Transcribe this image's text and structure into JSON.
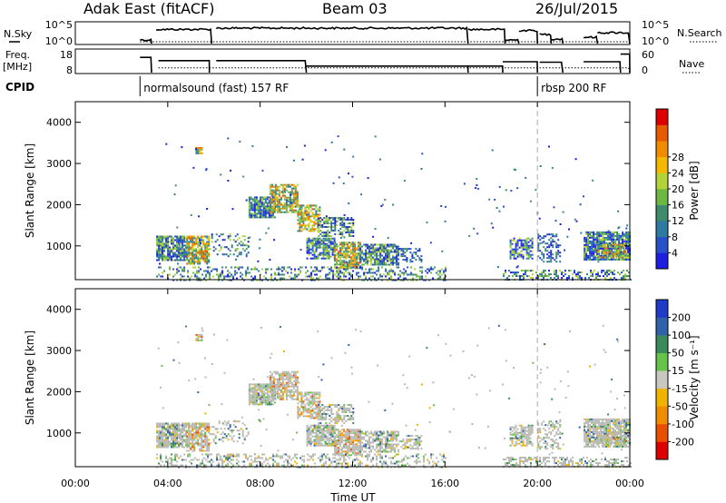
{
  "header": {
    "station": "Adak East (fitACF)",
    "beam": "Beam 03",
    "date": "26/Jul/2015"
  },
  "panels": {
    "nsky_label": "N.Sky",
    "nsearch_label": "N.Search",
    "freq_label": "Freq.",
    "freq_unit": "[MHz]",
    "nave_label": "Nave",
    "cpid_label": "CPID",
    "nsky_ticks": [
      "10^5",
      "10^0"
    ],
    "nsearch_ticks": [
      "10^5",
      "10^0"
    ],
    "freq_ticks": [
      "18",
      "8"
    ],
    "nave_ticks": [
      "60",
      "0"
    ]
  },
  "cpid_programs": [
    {
      "label": "normalsound (fast) 157 RF",
      "start_hour": 2.8
    },
    {
      "label": "rbsp 200 RF",
      "start_hour": 20.0
    }
  ],
  "x_ticks": [
    "00:00",
    "04:00",
    "08:00",
    "12:00",
    "16:00",
    "20:00",
    "00:00"
  ],
  "x_title": "Time UT",
  "y_title": "Slant Range [km]",
  "y_ticks": [
    "1000",
    "2000",
    "3000",
    "4000"
  ],
  "power_colorbar": {
    "title": "Power [dB]",
    "ticks": [
      "4",
      "8",
      "12",
      "16",
      "20",
      "24",
      "28"
    ],
    "colors": [
      "#1e1ee0",
      "#2850c8",
      "#2e7aa0",
      "#3e8c6c",
      "#6cb842",
      "#b4d23a",
      "#f5b800",
      "#f08c00",
      "#e85a00",
      "#dc0000"
    ]
  },
  "velocity_colorbar": {
    "title": "Velocity [m s⁻¹]",
    "ticks": [
      "200",
      "100",
      "50",
      "15",
      "-15",
      "-50",
      "-100",
      "-200"
    ],
    "colors": [
      "#1e3cc8",
      "#2f62a8",
      "#3a8a5a",
      "#66c24a",
      "#c8c8c0",
      "#f0b400",
      "#f08c00",
      "#e85000",
      "#dc0000"
    ]
  },
  "colors": {
    "ground_scatter": "#b9b9b4",
    "frame": "#000000"
  },
  "chart_data": {
    "type": "heatmap",
    "x_range_hours": [
      0,
      24
    ],
    "y_range_km": [
      180,
      4500
    ],
    "regions": [
      {
        "t0": 3.5,
        "t1": 4.8,
        "r0": 650,
        "r1": 1250,
        "kind": "mid",
        "density": 0.85
      },
      {
        "t0": 4.8,
        "t1": 5.8,
        "r0": 550,
        "r1": 1250,
        "kind": "hot",
        "density": 0.8
      },
      {
        "t0": 5.8,
        "t1": 7.5,
        "r0": 750,
        "r1": 1300,
        "kind": "mid",
        "density": 0.25
      },
      {
        "t0": 7.5,
        "t1": 8.6,
        "r0": 1700,
        "r1": 2200,
        "kind": "mid",
        "density": 0.85
      },
      {
        "t0": 8.4,
        "t1": 9.6,
        "r0": 1800,
        "r1": 2500,
        "kind": "hot",
        "density": 0.75
      },
      {
        "t0": 9.6,
        "t1": 10.6,
        "r0": 1350,
        "r1": 2000,
        "kind": "hot",
        "density": 0.7
      },
      {
        "t0": 10.5,
        "t1": 12.0,
        "r0": 1250,
        "r1": 1700,
        "kind": "mid",
        "density": 0.6
      },
      {
        "t0": 10.0,
        "t1": 11.2,
        "r0": 700,
        "r1": 1200,
        "kind": "mid",
        "density": 0.85
      },
      {
        "t0": 11.2,
        "t1": 12.3,
        "r0": 450,
        "r1": 1100,
        "kind": "hot",
        "density": 0.85
      },
      {
        "t0": 12.3,
        "t1": 14.0,
        "r0": 550,
        "r1": 1050,
        "kind": "mid",
        "density": 0.75
      },
      {
        "t0": 14.0,
        "t1": 15.0,
        "r0": 600,
        "r1": 950,
        "kind": "low",
        "density": 0.5
      },
      {
        "t0": 18.8,
        "t1": 19.8,
        "r0": 700,
        "r1": 1200,
        "kind": "mid",
        "density": 0.65
      },
      {
        "t0": 20.0,
        "t1": 21.0,
        "r0": 600,
        "r1": 1300,
        "kind": "low",
        "density": 0.4
      },
      {
        "t0": 22.0,
        "t1": 24.0,
        "r0": 650,
        "r1": 1350,
        "kind": "mid",
        "density": 0.85
      },
      {
        "t0": 22.6,
        "t1": 23.8,
        "r0": 700,
        "r1": 1050,
        "kind": "hot",
        "density": 0.55
      },
      {
        "t0": 3.5,
        "t1": 16.0,
        "r0": 180,
        "r1": 500,
        "kind": "mid",
        "density": 0.35
      },
      {
        "t0": 18.5,
        "t1": 24.0,
        "r0": 180,
        "r1": 420,
        "kind": "mid",
        "density": 0.45
      },
      {
        "t0": 5.2,
        "t1": 5.5,
        "r0": 3250,
        "r1": 3400,
        "kind": "hot",
        "density": 0.9
      }
    ]
  }
}
